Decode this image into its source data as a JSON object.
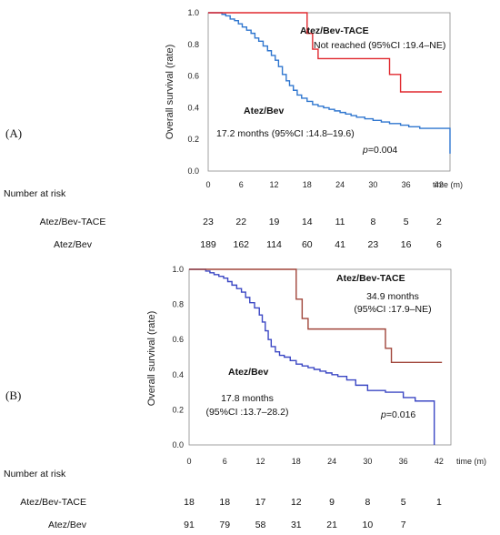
{
  "chart_data": [
    {
      "panel": "(A)",
      "type": "line",
      "step": true,
      "ylabel": "Overall  survival (rate)",
      "xlabel": "time (m)",
      "xlim": [
        0,
        44
      ],
      "ylim": [
        0,
        1
      ],
      "xticks": [
        0,
        6,
        12,
        18,
        24,
        30,
        36,
        42
      ],
      "yticks": [
        "0.0",
        "0.2",
        "0.4",
        "0.6",
        "0.8",
        "1.0"
      ],
      "grid": false,
      "series": [
        {
          "name": "Atez/Bev-TACE",
          "color": "#e0282e",
          "x": [
            0,
            17,
            18,
            19,
            20,
            33,
            35,
            42.5
          ],
          "y": [
            1.0,
            1.0,
            0.87,
            0.77,
            0.71,
            0.61,
            0.5,
            0.5
          ]
        },
        {
          "name": "Atez/Bev",
          "color": "#2f76cf",
          "x": [
            0,
            1.8,
            2.5,
            3.2,
            4.0,
            4.8,
            5.5,
            6.2,
            7.0,
            7.8,
            8.5,
            9.2,
            10.0,
            10.8,
            11.5,
            12.2,
            12.8,
            13.5,
            14.2,
            14.8,
            15.5,
            16.2,
            17.0,
            18.0,
            19.0,
            20.0,
            21.0,
            22.0,
            23.0,
            24.0,
            25.0,
            26.0,
            27.0,
            28.5,
            30.0,
            31.5,
            33.0,
            35.0,
            36.5,
            38.5,
            42.5,
            44.0
          ],
          "y": [
            1.0,
            1.0,
            0.99,
            0.98,
            0.96,
            0.95,
            0.93,
            0.91,
            0.89,
            0.87,
            0.84,
            0.82,
            0.79,
            0.76,
            0.73,
            0.7,
            0.66,
            0.61,
            0.57,
            0.54,
            0.51,
            0.48,
            0.46,
            0.44,
            0.42,
            0.41,
            0.4,
            0.39,
            0.38,
            0.37,
            0.36,
            0.35,
            0.34,
            0.33,
            0.32,
            0.31,
            0.3,
            0.29,
            0.28,
            0.27,
            0.27,
            0.11
          ]
        }
      ],
      "annotations": {
        "tace_label": "Atez/Bev-TACE",
        "tace_text": "Not reached (95%CI :19.4–NE)",
        "bev_label": "Atez/Bev",
        "bev_text": "17.2 months (95%CI :14.8–19.6)",
        "p_value": "=0.004"
      },
      "risk_table": {
        "title": "Number at risk",
        "rows": [
          {
            "label": "Atez/Bev-TACE",
            "values": [
              "23",
              "22",
              "19",
              "14",
              "11",
              "8",
              "5",
              "2"
            ]
          },
          {
            "label": "Atez/Bev",
            "values": [
              "189",
              "162",
              "114",
              "60",
              "41",
              "23",
              "16",
              "6"
            ]
          }
        ]
      }
    },
    {
      "panel": "(B)",
      "type": "line",
      "step": true,
      "ylabel": "Overall  survival (rate)",
      "xlabel": "time (m)",
      "xlim": [
        0,
        44
      ],
      "ylim": [
        0,
        1
      ],
      "xticks": [
        0,
        6,
        12,
        18,
        24,
        30,
        36,
        42
      ],
      "yticks": [
        "0.0",
        "0.2",
        "0.4",
        "0.6",
        "0.8",
        "1.0"
      ],
      "grid": false,
      "series": [
        {
          "name": "Atez/Bev-TACE",
          "color": "#a0453a",
          "x": [
            0,
            17,
            18,
            19,
            20,
            33,
            34,
            42.5
          ],
          "y": [
            1.0,
            1.0,
            0.83,
            0.72,
            0.66,
            0.55,
            0.47,
            0.47
          ]
        },
        {
          "name": "Atez/Bev",
          "color": "#3b47c4",
          "x": [
            0,
            2.0,
            2.8,
            3.5,
            4.2,
            5.0,
            5.8,
            6.5,
            7.2,
            8.0,
            8.8,
            9.5,
            10.2,
            11.0,
            11.8,
            12.3,
            12.8,
            13.3,
            13.8,
            14.5,
            15.2,
            16.0,
            17.0,
            18.0,
            19.0,
            20.0,
            21.0,
            22.0,
            23.0,
            24.0,
            25.0,
            26.5,
            28.0,
            30.0,
            33.0,
            36.0,
            38.0,
            40.5,
            41.2
          ],
          "y": [
            1.0,
            1.0,
            0.99,
            0.98,
            0.97,
            0.96,
            0.95,
            0.93,
            0.91,
            0.89,
            0.87,
            0.84,
            0.81,
            0.78,
            0.74,
            0.7,
            0.65,
            0.6,
            0.56,
            0.53,
            0.51,
            0.5,
            0.48,
            0.46,
            0.45,
            0.44,
            0.43,
            0.42,
            0.41,
            0.4,
            0.39,
            0.37,
            0.34,
            0.31,
            0.3,
            0.27,
            0.25,
            0.25,
            0.0
          ]
        }
      ],
      "annotations": {
        "tace_label": "Atez/Bev-TACE",
        "tace_text_1": "34.9 months",
        "tace_text_2": "(95%CI :17.9–NE)",
        "bev_label": "Atez/Bev",
        "bev_text_1": "17.8 months",
        "bev_text_2": "(95%CI :13.7–28.2)",
        "p_value": "=0.016"
      },
      "risk_table": {
        "title": "Number at risk",
        "rows": [
          {
            "label": "Atez/Bev-TACE",
            "values": [
              "18",
              "18",
              "17",
              "12",
              "9",
              "8",
              "5",
              "1"
            ]
          },
          {
            "label": "Atez/Bev",
            "values": [
              "91",
              "79",
              "58",
              "31",
              "21",
              "10",
              "7",
              ""
            ]
          }
        ]
      }
    }
  ]
}
